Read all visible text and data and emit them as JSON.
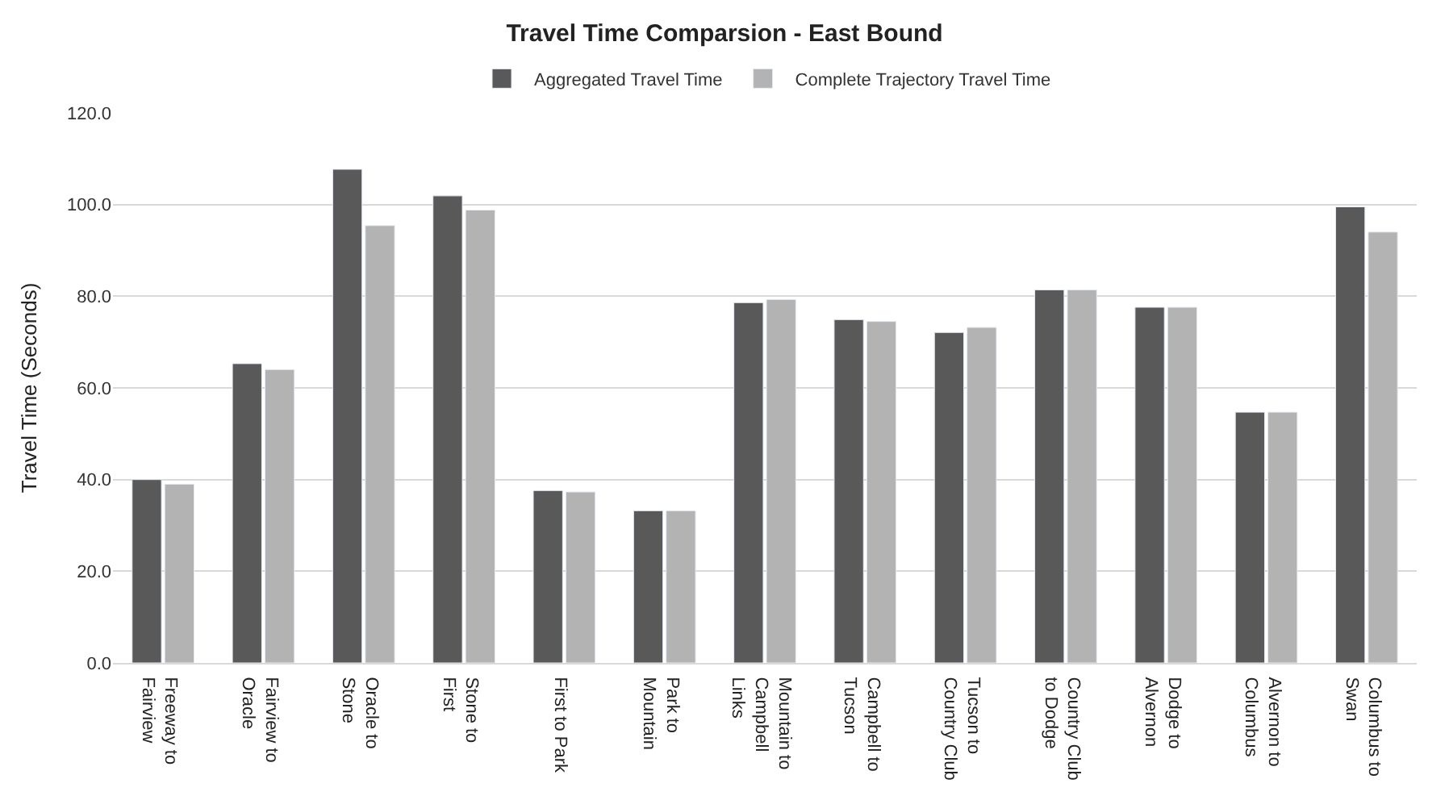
{
  "chart_data": {
    "type": "bar",
    "title": "Travel Time Comparsion - East Bound",
    "ylabel": "Travel Time (Seconds)",
    "categories": [
      "Freeway to Fairview",
      "Fairview to Oracle",
      "Oracle to Stone",
      "Stone to First",
      "First to Park",
      "Park to Mountain",
      "Mountain to Campbell Links",
      "Campbell to Tucson",
      "Tucson to Country Club",
      "Country Club to Dodge",
      "Dodge to Alvernon",
      "Alvernon to Columbus",
      "Columbus to Swan"
    ],
    "series": [
      {
        "name": "Aggregated Travel Time",
        "color": "#595959",
        "values": [
          40.0,
          65.3,
          107.7,
          101.9,
          37.6,
          33.2,
          78.6,
          74.9,
          72.1,
          81.4,
          77.6,
          54.7,
          99.5
        ]
      },
      {
        "name": "Complete Trajectory Travel Time",
        "color": "#b3b3b3",
        "values": [
          39.0,
          64.0,
          95.4,
          98.8,
          37.3,
          33.2,
          79.3,
          74.5,
          73.2,
          81.4,
          77.6,
          54.7,
          94.0
        ]
      }
    ],
    "ylim": [
      0,
      120
    ],
    "yticks": [
      {
        "value": 0,
        "label": "0.0"
      },
      {
        "value": 20,
        "label": "20.0"
      },
      {
        "value": 40,
        "label": "40.0"
      },
      {
        "value": 60,
        "label": "60.0"
      },
      {
        "value": 80,
        "label": "80.0"
      },
      {
        "value": 100,
        "label": "100.0"
      },
      {
        "value": 120,
        "label": "120.0"
      }
    ],
    "grid": "y",
    "legend": "top"
  }
}
